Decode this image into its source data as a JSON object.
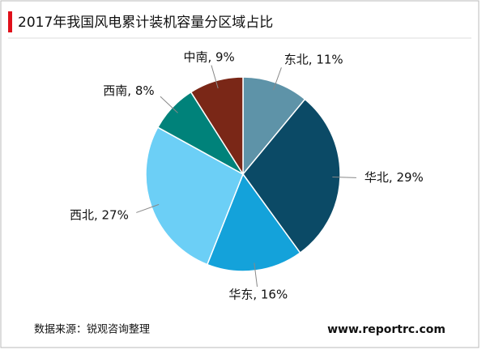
{
  "chart_data": {
    "type": "pie",
    "title": "2017年我国风电累计装机容量分区域占比",
    "values": [
      11,
      29,
      16,
      27,
      8,
      9
    ],
    "value_labels": [
      "东北, 11%",
      "华北, 29%",
      "华东, 16%",
      "西北, 27%",
      "西南, 8%",
      "中南, 9%"
    ],
    "colors": [
      "#5e93a8",
      "#0b4a66",
      "#14a2da",
      "#6ccff6",
      "#00827a",
      "#7a2717"
    ],
    "source": "数据来源：锐观咨询整理",
    "watermark": "www.reportrc.com"
  }
}
